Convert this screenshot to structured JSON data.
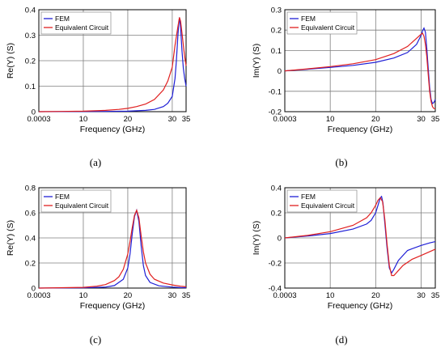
{
  "colors": {
    "fem": "#1f1fd6",
    "circuit": "#e01f1f",
    "grid": "#7f7f7f",
    "axis": "#000000"
  },
  "chart_data": [
    {
      "type": "line",
      "panel_label": "(a)",
      "xlabel": "Frequency (GHz)",
      "ylabel": "Re(Y) (S)",
      "xlim": [
        0.0003,
        35
      ],
      "ylim": [
        0,
        0.4
      ],
      "x_ticks": [
        0.0003,
        10,
        20,
        30,
        35
      ],
      "x_tick_labels": [
        "0.0003",
        "10",
        "20",
        "30",
        "35"
      ],
      "y_ticks": [
        0,
        0.1,
        0.2,
        0.3,
        0.4
      ],
      "y_tick_labels": [
        "0",
        "0.1",
        "0.2",
        "0.3",
        "0.4"
      ],
      "grid": true,
      "legend_position": "top-left",
      "series": [
        {
          "name": "FEM",
          "color": "#1f1fd6",
          "x": [
            0.0003,
            10,
            15,
            20,
            24,
            26,
            28,
            29,
            30,
            31,
            31.5,
            32,
            32.3,
            32.6,
            33,
            33.5,
            34,
            34.5,
            35
          ],
          "y": [
            0,
            0.0005,
            0.001,
            0.002,
            0.005,
            0.009,
            0.02,
            0.033,
            0.06,
            0.13,
            0.2,
            0.29,
            0.34,
            0.37,
            0.33,
            0.24,
            0.17,
            0.13,
            0.1
          ]
        },
        {
          "name": "Equivalent Circuit",
          "color": "#e01f1f",
          "x": [
            0.0003,
            5,
            10,
            15,
            18,
            20,
            22,
            24,
            26,
            28,
            29,
            30,
            31,
            32,
            32.6,
            33,
            33.5,
            34,
            34.5,
            35
          ],
          "y": [
            0,
            0.001,
            0.002,
            0.005,
            0.009,
            0.013,
            0.02,
            0.03,
            0.048,
            0.085,
            0.12,
            0.175,
            0.26,
            0.33,
            0.37,
            0.355,
            0.31,
            0.26,
            0.215,
            0.18
          ]
        }
      ]
    },
    {
      "type": "line",
      "panel_label": "(b)",
      "xlabel": "Frequency (GHz)",
      "ylabel": "Im(Y) (S)",
      "xlim": [
        0.0003,
        35
      ],
      "ylim": [
        -0.2,
        0.3
      ],
      "x_ticks": [
        0.0003,
        10,
        20,
        30,
        35
      ],
      "x_tick_labels": [
        "0.0003",
        "10",
        "20",
        "30",
        "35"
      ],
      "y_ticks": [
        -0.2,
        -0.1,
        0,
        0.1,
        0.2,
        0.3
      ],
      "y_tick_labels": [
        "-0.2",
        "-0.1",
        "0",
        "0.1",
        "0.2",
        "0.3"
      ],
      "grid": true,
      "legend_position": "top-left",
      "series": [
        {
          "name": "FEM",
          "color": "#1f1fd6",
          "x": [
            0.0003,
            5,
            10,
            15,
            20,
            24,
            27,
            29,
            30,
            30.6,
            31,
            31.5,
            32,
            32.5,
            33,
            33.5,
            34,
            34.5,
            35
          ],
          "y": [
            0,
            0.008,
            0.017,
            0.027,
            0.042,
            0.063,
            0.09,
            0.13,
            0.175,
            0.2,
            0.21,
            0.19,
            0.11,
            0.01,
            -0.08,
            -0.14,
            -0.16,
            -0.155,
            -0.14
          ]
        },
        {
          "name": "Equivalent Circuit",
          "color": "#e01f1f",
          "x": [
            0.0003,
            5,
            10,
            15,
            20,
            24,
            27,
            29,
            30,
            30.5,
            31,
            31.5,
            32,
            32.5,
            33,
            33.5,
            34,
            34.5,
            35
          ],
          "y": [
            0,
            0.01,
            0.021,
            0.035,
            0.055,
            0.085,
            0.12,
            0.16,
            0.18,
            0.185,
            0.17,
            0.13,
            0.07,
            -0.02,
            -0.1,
            -0.15,
            -0.175,
            -0.185,
            -0.185
          ]
        }
      ]
    },
    {
      "type": "line",
      "panel_label": "(c)",
      "xlabel": "Frequency (GHz)",
      "ylabel": "Re(Y) (S)",
      "xlim": [
        0.0003,
        35
      ],
      "ylim": [
        0,
        0.8
      ],
      "x_ticks": [
        0.0003,
        10,
        20,
        30,
        35
      ],
      "x_tick_labels": [
        "0.0003",
        "10",
        "20",
        "30",
        "35"
      ],
      "y_ticks": [
        0,
        0.2,
        0.4,
        0.6,
        0.8
      ],
      "y_tick_labels": [
        "0",
        "0.2",
        "0.4",
        "0.6",
        "0.8"
      ],
      "grid": true,
      "legend_position": "top-left",
      "series": [
        {
          "name": "FEM",
          "color": "#1f1fd6",
          "x": [
            0.0003,
            10,
            15,
            17,
            19,
            20,
            20.5,
            21,
            21.5,
            22,
            22.5,
            23,
            23.5,
            24,
            25,
            27,
            30,
            33,
            35
          ],
          "y": [
            0,
            0.002,
            0.008,
            0.02,
            0.07,
            0.16,
            0.27,
            0.43,
            0.57,
            0.62,
            0.53,
            0.34,
            0.18,
            0.1,
            0.045,
            0.018,
            0.008,
            0.004,
            0.003
          ]
        },
        {
          "name": "Equivalent Circuit",
          "color": "#e01f1f",
          "x": [
            0.0003,
            10,
            13,
            15,
            17,
            18,
            19,
            20,
            20.5,
            21,
            21.5,
            22,
            22.5,
            23,
            23.5,
            24,
            25,
            26,
            28,
            30,
            33,
            35
          ],
          "y": [
            0,
            0.006,
            0.015,
            0.028,
            0.06,
            0.09,
            0.15,
            0.27,
            0.37,
            0.48,
            0.58,
            0.62,
            0.56,
            0.42,
            0.29,
            0.2,
            0.11,
            0.07,
            0.04,
            0.025,
            0.015,
            0.01
          ]
        }
      ]
    },
    {
      "type": "line",
      "panel_label": "(d)",
      "xlabel": "Frequency (GHz)",
      "ylabel": "Im(Y) (S)",
      "xlim": [
        0.0003,
        35
      ],
      "ylim": [
        -0.4,
        0.4
      ],
      "x_ticks": [
        0.0003,
        10,
        20,
        30,
        35
      ],
      "x_tick_labels": [
        "0.0003",
        "10",
        "20",
        "30",
        "35"
      ],
      "y_ticks": [
        -0.4,
        -0.2,
        0,
        0.2,
        0.4
      ],
      "y_tick_labels": [
        "-0.4",
        "-0.2",
        "0",
        "0.2",
        "0.4"
      ],
      "grid": true,
      "legend_position": "top-left",
      "series": [
        {
          "name": "FEM",
          "color": "#1f1fd6",
          "x": [
            0.0003,
            5,
            10,
            15,
            18,
            19,
            20,
            20.5,
            21,
            21.3,
            21.6,
            22,
            22.5,
            23,
            23.5,
            24,
            25,
            27,
            30,
            33,
            35
          ],
          "y": [
            0,
            0.015,
            0.035,
            0.07,
            0.11,
            0.14,
            0.2,
            0.26,
            0.32,
            0.33,
            0.28,
            0.12,
            -0.08,
            -0.24,
            -0.28,
            -0.25,
            -0.18,
            -0.1,
            -0.06,
            -0.04,
            -0.03
          ]
        },
        {
          "name": "Equivalent Circuit",
          "color": "#e01f1f",
          "x": [
            0.0003,
            5,
            10,
            15,
            18,
            19,
            20,
            20.5,
            21,
            21.5,
            22,
            22.5,
            23,
            23.5,
            24,
            25,
            26,
            28,
            30,
            33,
            35
          ],
          "y": [
            0,
            0.02,
            0.05,
            0.1,
            0.16,
            0.2,
            0.26,
            0.3,
            0.32,
            0.29,
            0.15,
            -0.05,
            -0.22,
            -0.3,
            -0.3,
            -0.26,
            -0.22,
            -0.17,
            -0.14,
            -0.11,
            -0.09
          ]
        }
      ]
    }
  ]
}
